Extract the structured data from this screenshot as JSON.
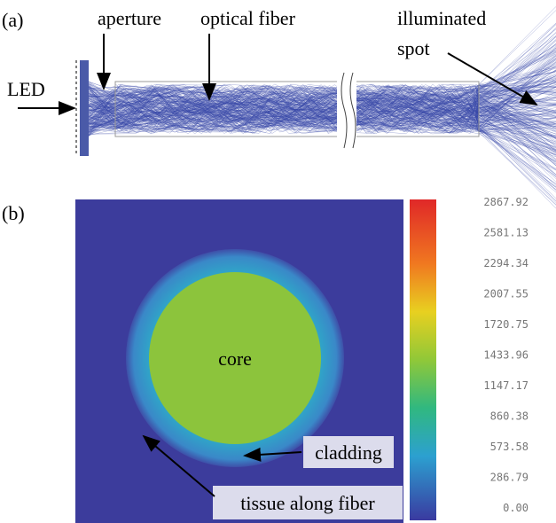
{
  "panel_a": {
    "label": "(a)",
    "annotations": {
      "led": "LED",
      "aperture": "aperture",
      "fiber": "optical fiber",
      "spot_line1": "illuminated",
      "spot_line2": "spot"
    }
  },
  "panel_b": {
    "label": "(b)",
    "annotations": {
      "core": "core",
      "cladding": "cladding",
      "tissue": "tissue along fiber"
    },
    "colorbar": {
      "labels": [
        "2867.92",
        "2581.13",
        "2294.34",
        "2007.55",
        "1720.75",
        "1433.96",
        "1147.17",
        "860.38",
        "573.58",
        "286.79",
        "0.00"
      ]
    }
  }
}
